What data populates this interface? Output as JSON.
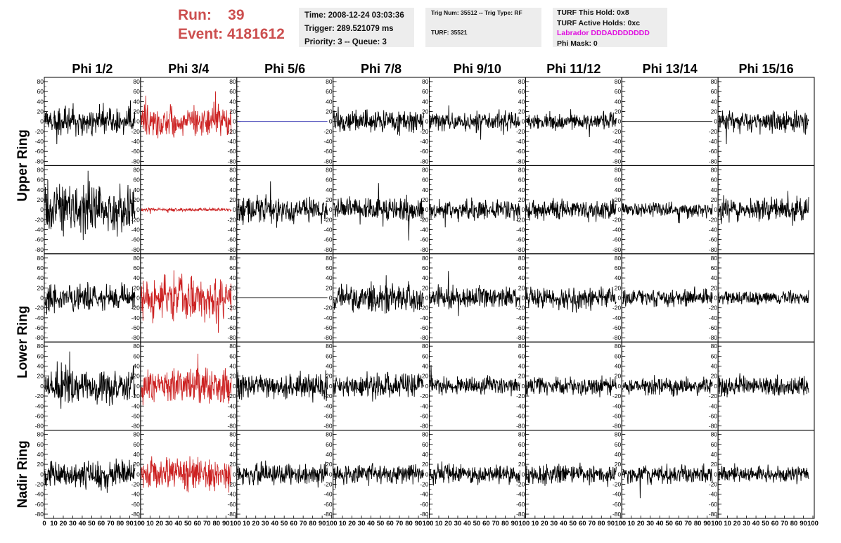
{
  "header": {
    "run_label": "Run:",
    "run_value": "39",
    "event_label": "Event:",
    "event_value": "4181612"
  },
  "info1": {
    "time": "Time: 2008-12-24 03:03:36",
    "trigger": "Trigger: 289.521079 ms",
    "priority": "Priority: 3 -- Queue: 3"
  },
  "info2": {
    "trig": "Trig Num: 35512 -- Trig Type: RF",
    "turf": "TURF: 35521"
  },
  "info3": {
    "this_hold": "TURF This Hold: 0x8",
    "active_holds": "TURF Active Holds: 0xc",
    "labrador": "Labrador DDDADDDDDDD",
    "phi_mask": "Phi Mask: 0"
  },
  "colors": {
    "accent_red": "#cc4f4f",
    "trace_red": "#cc2222",
    "trace_black": "#000000",
    "trace_blue": "#2222aa",
    "labrador_magenta": "#e010e0"
  },
  "chart_data": {
    "type": "line",
    "columns": [
      "Phi 1/2",
      "Phi 3/4",
      "Phi 5/6",
      "Phi 7/8",
      "Phi 9/10",
      "Phi 11/12",
      "Phi 13/14",
      "Phi 15/16"
    ],
    "row_labels": [
      "Upper Ring",
      "Lower Ring",
      "Nadir Ring"
    ],
    "yticks": [
      80,
      60,
      40,
      20,
      0,
      -20,
      -40,
      -60,
      -80
    ],
    "ylim": [
      -80,
      80
    ],
    "xticks": [
      0,
      10,
      20,
      30,
      40,
      50,
      60,
      70,
      80,
      90,
      100
    ],
    "xlim": [
      0,
      100
    ],
    "panels": [
      [
        {
          "amp": 17,
          "color": "black"
        },
        {
          "amp": 19,
          "color": "red"
        },
        {
          "amp": 0,
          "color": "blue"
        },
        {
          "amp": 13,
          "color": "black"
        },
        {
          "amp": 11,
          "color": "black"
        },
        {
          "amp": 10,
          "color": "black"
        },
        {
          "amp": 0,
          "color": "black"
        },
        {
          "amp": 14,
          "color": "black"
        }
      ],
      [
        {
          "amp": 28,
          "color": "black"
        },
        {
          "amp": 2,
          "color": "red"
        },
        {
          "amp": 16,
          "color": "black"
        },
        {
          "amp": 14,
          "color": "black"
        },
        {
          "amp": 12,
          "color": "black"
        },
        {
          "amp": 12,
          "color": "black"
        },
        {
          "amp": 9,
          "color": "black"
        },
        {
          "amp": 14,
          "color": "black"
        }
      ],
      [
        {
          "amp": 16,
          "color": "black"
        },
        {
          "amp": 26,
          "color": "red"
        },
        {
          "amp": 0,
          "color": "black"
        },
        {
          "amp": 17,
          "color": "black"
        },
        {
          "amp": 13,
          "color": "black"
        },
        {
          "amp": 12,
          "color": "black"
        },
        {
          "amp": 10,
          "color": "black"
        },
        {
          "amp": 8,
          "color": "black"
        }
      ],
      [
        {
          "amp": 22,
          "color": "black"
        },
        {
          "amp": 22,
          "color": "red"
        },
        {
          "amp": 16,
          "color": "black"
        },
        {
          "amp": 14,
          "color": "black"
        },
        {
          "amp": 11,
          "color": "black"
        },
        {
          "amp": 12,
          "color": "black"
        },
        {
          "amp": 10,
          "color": "black"
        },
        {
          "amp": 12,
          "color": "black"
        }
      ],
      [
        {
          "amp": 17,
          "color": "black"
        },
        {
          "amp": 20,
          "color": "red"
        },
        {
          "amp": 13,
          "color": "black"
        },
        {
          "amp": 12,
          "color": "black"
        },
        {
          "amp": 11,
          "color": "black"
        },
        {
          "amp": 12,
          "color": "black"
        },
        {
          "amp": 11,
          "color": "black"
        },
        {
          "amp": 10,
          "color": "black"
        }
      ]
    ]
  }
}
